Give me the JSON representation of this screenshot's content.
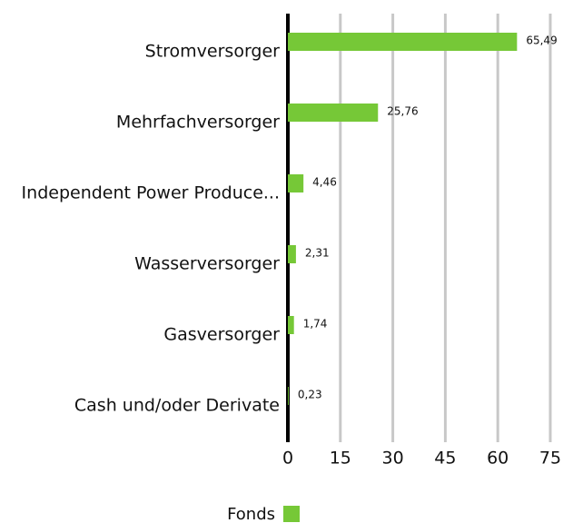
{
  "chart_data": {
    "type": "hbar",
    "categories": [
      "Stromversorger",
      "Mehrfachversorger",
      "Independent Power Produce...",
      "Wasserversorger",
      "Gasversorger",
      "Cash und/oder Derivate"
    ],
    "series": [
      {
        "name": "Fonds",
        "color": "#76c837",
        "values": [
          65.49,
          25.76,
          4.46,
          2.31,
          1.74,
          0.23
        ],
        "value_labels": [
          "65,49",
          "25,76",
          "4,46",
          "2,31",
          "1,74",
          "0,23"
        ]
      }
    ],
    "xlim": [
      0,
      75
    ],
    "xticks": [
      0,
      15,
      30,
      45,
      60,
      75
    ],
    "grid": true,
    "legend": "bottom"
  }
}
